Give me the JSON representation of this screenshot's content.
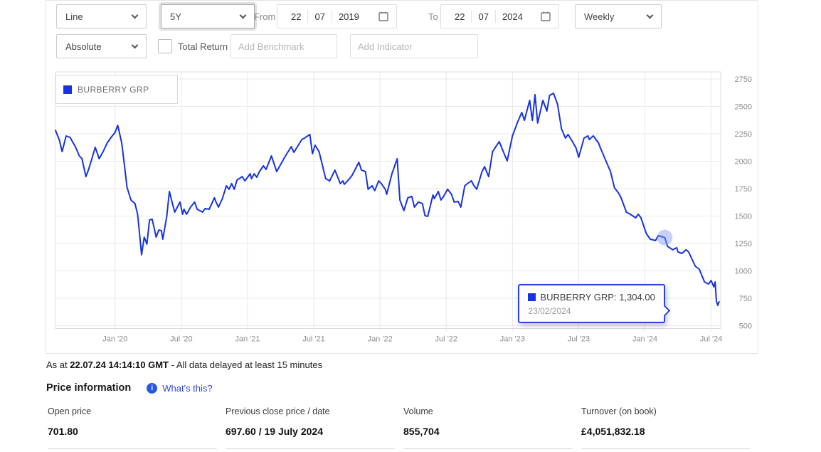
{
  "controls": {
    "chart_type": {
      "value": "Line"
    },
    "range": {
      "value": "5Y"
    },
    "from_label": "From",
    "from_date": {
      "day": "22",
      "month": "07",
      "year": "2019"
    },
    "to_label": "To",
    "to_date": {
      "day": "22",
      "month": "07",
      "year": "2024"
    },
    "frequency": {
      "value": "Weekly"
    },
    "mode": {
      "value": "Absolute"
    },
    "total_return_label": "Total Return",
    "benchmark_placeholder": "Add Benchmark",
    "indicator_placeholder": "Add Indicator"
  },
  "legend": {
    "label": "BURBERRY GRP"
  },
  "tooltip": {
    "value_label": "BURBERRY GRP: 1,304.00",
    "date": "23/02/2024"
  },
  "chart_data": {
    "type": "line",
    "title": "BURBERRY GRP share price, 5 years, weekly",
    "xlabel": "",
    "ylabel": "",
    "grid": true,
    "legend_position": "top-left",
    "xlim": [
      2019.55,
      2024.572
    ],
    "ylim": [
      474,
      2815
    ],
    "y_ticks": [
      500,
      750,
      1000,
      1250,
      1500,
      1750,
      2000,
      2250,
      2500,
      2750
    ],
    "x_ticks": [
      {
        "v": 2020.0,
        "label": "Jan '20"
      },
      {
        "v": 2020.5,
        "label": "Jul '20"
      },
      {
        "v": 2021.0,
        "label": "Jan '21"
      },
      {
        "v": 2021.5,
        "label": "Jul '21"
      },
      {
        "v": 2022.0,
        "label": "Jan '22"
      },
      {
        "v": 2022.5,
        "label": "Jul '22"
      },
      {
        "v": 2023.0,
        "label": "Jan '23"
      },
      {
        "v": 2023.5,
        "label": "Jul '23"
      },
      {
        "v": 2024.0,
        "label": "Jan '24"
      },
      {
        "v": 2024.5,
        "label": "Jul '24"
      }
    ],
    "highlight": {
      "x": 2024.15,
      "y": 1304,
      "label": "BURBERRY GRP: 1,304.00",
      "date": "23/02/2024"
    },
    "series": [
      {
        "name": "BURBERRY GRP",
        "color": "#1733e0",
        "points": [
          [
            2019.55,
            2282
          ],
          [
            2019.58,
            2190
          ],
          [
            2019.6,
            2088
          ],
          [
            2019.63,
            2230
          ],
          [
            2019.66,
            2218
          ],
          [
            2019.68,
            2175
          ],
          [
            2019.7,
            2133
          ],
          [
            2019.73,
            2049
          ],
          [
            2019.75,
            2023
          ],
          [
            2019.78,
            1860
          ],
          [
            2019.8,
            1925
          ],
          [
            2019.82,
            2005
          ],
          [
            2019.85,
            2127
          ],
          [
            2019.88,
            2023
          ],
          [
            2019.91,
            2088
          ],
          [
            2019.94,
            2166
          ],
          [
            2019.97,
            2218
          ],
          [
            2020.0,
            2263
          ],
          [
            2020.02,
            2328
          ],
          [
            2020.05,
            2166
          ],
          [
            2020.07,
            1971
          ],
          [
            2020.09,
            1763
          ],
          [
            2020.12,
            1646
          ],
          [
            2020.15,
            1614
          ],
          [
            2020.17,
            1516
          ],
          [
            2020.19,
            1270
          ],
          [
            2020.2,
            1146
          ],
          [
            2020.22,
            1308
          ],
          [
            2020.24,
            1244
          ],
          [
            2020.26,
            1464
          ],
          [
            2020.28,
            1471
          ],
          [
            2020.31,
            1308
          ],
          [
            2020.33,
            1373
          ],
          [
            2020.35,
            1367
          ],
          [
            2020.36,
            1289
          ],
          [
            2020.39,
            1497
          ],
          [
            2020.41,
            1724
          ],
          [
            2020.44,
            1581
          ],
          [
            2020.45,
            1536
          ],
          [
            2020.49,
            1627
          ],
          [
            2020.51,
            1516
          ],
          [
            2020.52,
            1562
          ],
          [
            2020.54,
            1516
          ],
          [
            2020.57,
            1581
          ],
          [
            2020.6,
            1627
          ],
          [
            2020.62,
            1562
          ],
          [
            2020.66,
            1536
          ],
          [
            2020.68,
            1568
          ],
          [
            2020.71,
            1562
          ],
          [
            2020.75,
            1666
          ],
          [
            2020.76,
            1633
          ],
          [
            2020.78,
            1581
          ],
          [
            2020.81,
            1659
          ],
          [
            2020.84,
            1776
          ],
          [
            2020.86,
            1744
          ],
          [
            2020.88,
            1796
          ],
          [
            2020.9,
            1744
          ],
          [
            2020.92,
            1828
          ],
          [
            2020.96,
            1860
          ],
          [
            2020.98,
            1821
          ],
          [
            2021.02,
            1886
          ],
          [
            2021.03,
            1841
          ],
          [
            2021.05,
            1886
          ],
          [
            2021.07,
            1854
          ],
          [
            2021.09,
            1906
          ],
          [
            2021.12,
            1958
          ],
          [
            2021.14,
            1925
          ],
          [
            2021.18,
            2049
          ],
          [
            2021.22,
            1906
          ],
          [
            2021.28,
            2036
          ],
          [
            2021.33,
            2133
          ],
          [
            2021.35,
            2081
          ],
          [
            2021.41,
            2198
          ],
          [
            2021.43,
            2211
          ],
          [
            2021.47,
            2244
          ],
          [
            2021.49,
            2068
          ],
          [
            2021.51,
            2146
          ],
          [
            2021.54,
            2088
          ],
          [
            2021.59,
            1841
          ],
          [
            2021.62,
            1821
          ],
          [
            2021.66,
            1919
          ],
          [
            2021.7,
            1796
          ],
          [
            2021.72,
            1821
          ],
          [
            2021.73,
            1789
          ],
          [
            2021.77,
            1841
          ],
          [
            2021.79,
            1873
          ],
          [
            2021.84,
            1990
          ],
          [
            2021.86,
            1919
          ],
          [
            2021.89,
            1906
          ],
          [
            2021.91,
            1744
          ],
          [
            2021.94,
            1776
          ],
          [
            2021.96,
            1731
          ],
          [
            2021.99,
            1821
          ],
          [
            2022.01,
            1796
          ],
          [
            2022.04,
            1744
          ],
          [
            2022.05,
            1698
          ],
          [
            2022.09,
            1886
          ],
          [
            2022.13,
            2023
          ],
          [
            2022.15,
            1646
          ],
          [
            2022.18,
            1549
          ],
          [
            2022.21,
            1666
          ],
          [
            2022.24,
            1679
          ],
          [
            2022.26,
            1581
          ],
          [
            2022.29,
            1627
          ],
          [
            2022.32,
            1614
          ],
          [
            2022.34,
            1503
          ],
          [
            2022.36,
            1497
          ],
          [
            2022.4,
            1692
          ],
          [
            2022.41,
            1659
          ],
          [
            2022.44,
            1724
          ],
          [
            2022.46,
            1646
          ],
          [
            2022.48,
            1679
          ],
          [
            2022.51,
            1744
          ],
          [
            2022.54,
            1698
          ],
          [
            2022.56,
            1627
          ],
          [
            2022.59,
            1633
          ],
          [
            2022.61,
            1581
          ],
          [
            2022.64,
            1776
          ],
          [
            2022.66,
            1796
          ],
          [
            2022.69,
            1821
          ],
          [
            2022.71,
            1776
          ],
          [
            2022.73,
            1744
          ],
          [
            2022.77,
            1906
          ],
          [
            2022.79,
            1951
          ],
          [
            2022.82,
            1860
          ],
          [
            2022.85,
            2088
          ],
          [
            2022.9,
            2179
          ],
          [
            2022.92,
            2120
          ],
          [
            2022.96,
            2003
          ],
          [
            2023.0,
            2231
          ],
          [
            2023.04,
            2361
          ],
          [
            2023.07,
            2445
          ],
          [
            2023.09,
            2373
          ],
          [
            2023.13,
            2555
          ],
          [
            2023.15,
            2373
          ],
          [
            2023.17,
            2607
          ],
          [
            2023.19,
            2348
          ],
          [
            2023.23,
            2555
          ],
          [
            2023.26,
            2458
          ],
          [
            2023.28,
            2601
          ],
          [
            2023.31,
            2620
          ],
          [
            2023.34,
            2523
          ],
          [
            2023.37,
            2296
          ],
          [
            2023.4,
            2211
          ],
          [
            2023.42,
            2244
          ],
          [
            2023.45,
            2185
          ],
          [
            2023.48,
            2120
          ],
          [
            2023.5,
            2036
          ],
          [
            2023.54,
            2211
          ],
          [
            2023.57,
            2231
          ],
          [
            2023.58,
            2198
          ],
          [
            2023.61,
            2231
          ],
          [
            2023.65,
            2166
          ],
          [
            2023.66,
            2133
          ],
          [
            2023.71,
            1990
          ],
          [
            2023.74,
            1906
          ],
          [
            2023.77,
            1757
          ],
          [
            2023.8,
            1711
          ],
          [
            2023.82,
            1666
          ],
          [
            2023.86,
            1536
          ],
          [
            2023.89,
            1516
          ],
          [
            2023.93,
            1484
          ],
          [
            2023.95,
            1516
          ],
          [
            2023.97,
            1484
          ],
          [
            2024.01,
            1341
          ],
          [
            2024.04,
            1289
          ],
          [
            2024.08,
            1276
          ],
          [
            2024.1,
            1321
          ],
          [
            2024.15,
            1304
          ],
          [
            2024.17,
            1224
          ],
          [
            2024.21,
            1192
          ],
          [
            2024.24,
            1211
          ],
          [
            2024.25,
            1172
          ],
          [
            2024.28,
            1159
          ],
          [
            2024.31,
            1192
          ],
          [
            2024.33,
            1172
          ],
          [
            2024.34,
            1146
          ],
          [
            2024.38,
            1042
          ],
          [
            2024.41,
            1016
          ],
          [
            2024.45,
            899
          ],
          [
            2024.48,
            880
          ],
          [
            2024.5,
            912
          ],
          [
            2024.52,
            854
          ],
          [
            2024.53,
            899
          ],
          [
            2024.54,
            724
          ],
          [
            2024.55,
            685
          ],
          [
            2024.56,
            718
          ]
        ]
      }
    ]
  },
  "footer": {
    "as_at": {
      "prefix": "As at ",
      "bold": "22.07.24 14:14:10 GMT",
      "suffix": " - All data delayed at least 15 minutes"
    },
    "price_information_title": "Price information",
    "whats_this_label": "What's this?",
    "stats": [
      {
        "label": "Open price",
        "value": "701.80"
      },
      {
        "label": "Previous close price / date",
        "value": "697.60 / 19 July 2024"
      },
      {
        "label": "Volume",
        "value": "855,704"
      },
      {
        "label": "Turnover (on book)",
        "value": "£4,051,832.18"
      }
    ]
  }
}
